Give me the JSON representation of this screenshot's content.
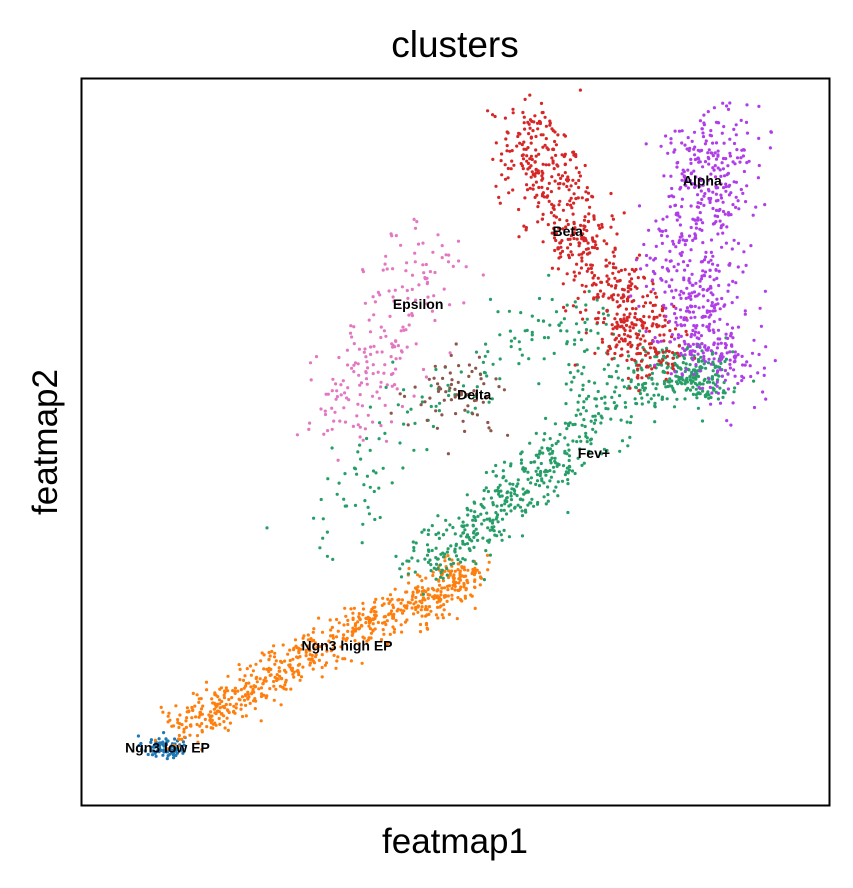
{
  "chart_data": {
    "type": "scatter",
    "title": "clusters",
    "xlabel": "featmap1",
    "ylabel": "featmap2",
    "grid": false,
    "legend": "on data",
    "xlim": [
      0,
      100
    ],
    "ylim": [
      0,
      100
    ],
    "series": [
      {
        "name": "Ngn3 low EP",
        "color": "#1f77b4",
        "n_points": 90,
        "centroid": [
          11,
          8
        ],
        "spread": [
          1.4,
          0.8
        ],
        "label_pos": [
          11.5,
          8
        ]
      },
      {
        "name": "Ngn3 high EP",
        "color": "#ff7f0e",
        "n_points": 700,
        "path": [
          [
            13,
            10
          ],
          [
            24,
            17
          ],
          [
            36,
            24
          ],
          [
            47,
            29
          ],
          [
            52,
            32
          ]
        ],
        "spread": [
          1.6,
          1.6
        ],
        "label_pos": [
          35.5,
          22
        ]
      },
      {
        "name": "Fev+",
        "color": "#279e68",
        "n_points": 700,
        "path": [
          [
            46,
            33
          ],
          [
            55,
            40
          ],
          [
            62,
            46
          ],
          [
            71,
            56
          ],
          [
            81,
            60
          ],
          [
            84,
            58
          ]
        ],
        "spread": [
          2.5,
          2.0
        ],
        "extra": [
          {
            "path": [
              [
                33,
                36
              ],
              [
                42,
                52
              ],
              [
                55,
                62
              ],
              [
                65,
                67
              ],
              [
                72,
                62
              ]
            ],
            "n_points": 180,
            "spread": [
              3.2,
              3.0
            ]
          }
        ],
        "label_pos": [
          68.5,
          48.5
        ]
      },
      {
        "name": "Delta",
        "color": "#8c564b",
        "n_points": 70,
        "centroid": [
          50.5,
          56.5
        ],
        "spread": [
          3,
          2.5
        ],
        "label_pos": [
          52.5,
          56.5
        ]
      },
      {
        "name": "Epsilon",
        "color": "#e377c2",
        "n_points": 200,
        "path": [
          [
            46,
            78
          ],
          [
            43,
            68
          ],
          [
            39,
            60
          ],
          [
            34,
            52
          ]
        ],
        "spread": [
          3.2,
          3.0
        ],
        "label_pos": [
          45,
          69
        ]
      },
      {
        "name": "Beta",
        "color": "#d62728",
        "n_points": 650,
        "path": [
          [
            59,
            94
          ],
          [
            62,
            86
          ],
          [
            68,
            76
          ],
          [
            73,
            67
          ],
          [
            77,
            62
          ]
        ],
        "spread": [
          2.6,
          2.6
        ],
        "label_pos": [
          65,
          79
        ]
      },
      {
        "name": "Alpha",
        "color": "#b03ee8",
        "n_points": 650,
        "path": [
          [
            85,
            93
          ],
          [
            83,
            85
          ],
          [
            82,
            75
          ],
          [
            83,
            65
          ],
          [
            87,
            60
          ]
        ],
        "spread": [
          3.2,
          3.0
        ],
        "label_pos": [
          83,
          86
        ]
      }
    ]
  }
}
